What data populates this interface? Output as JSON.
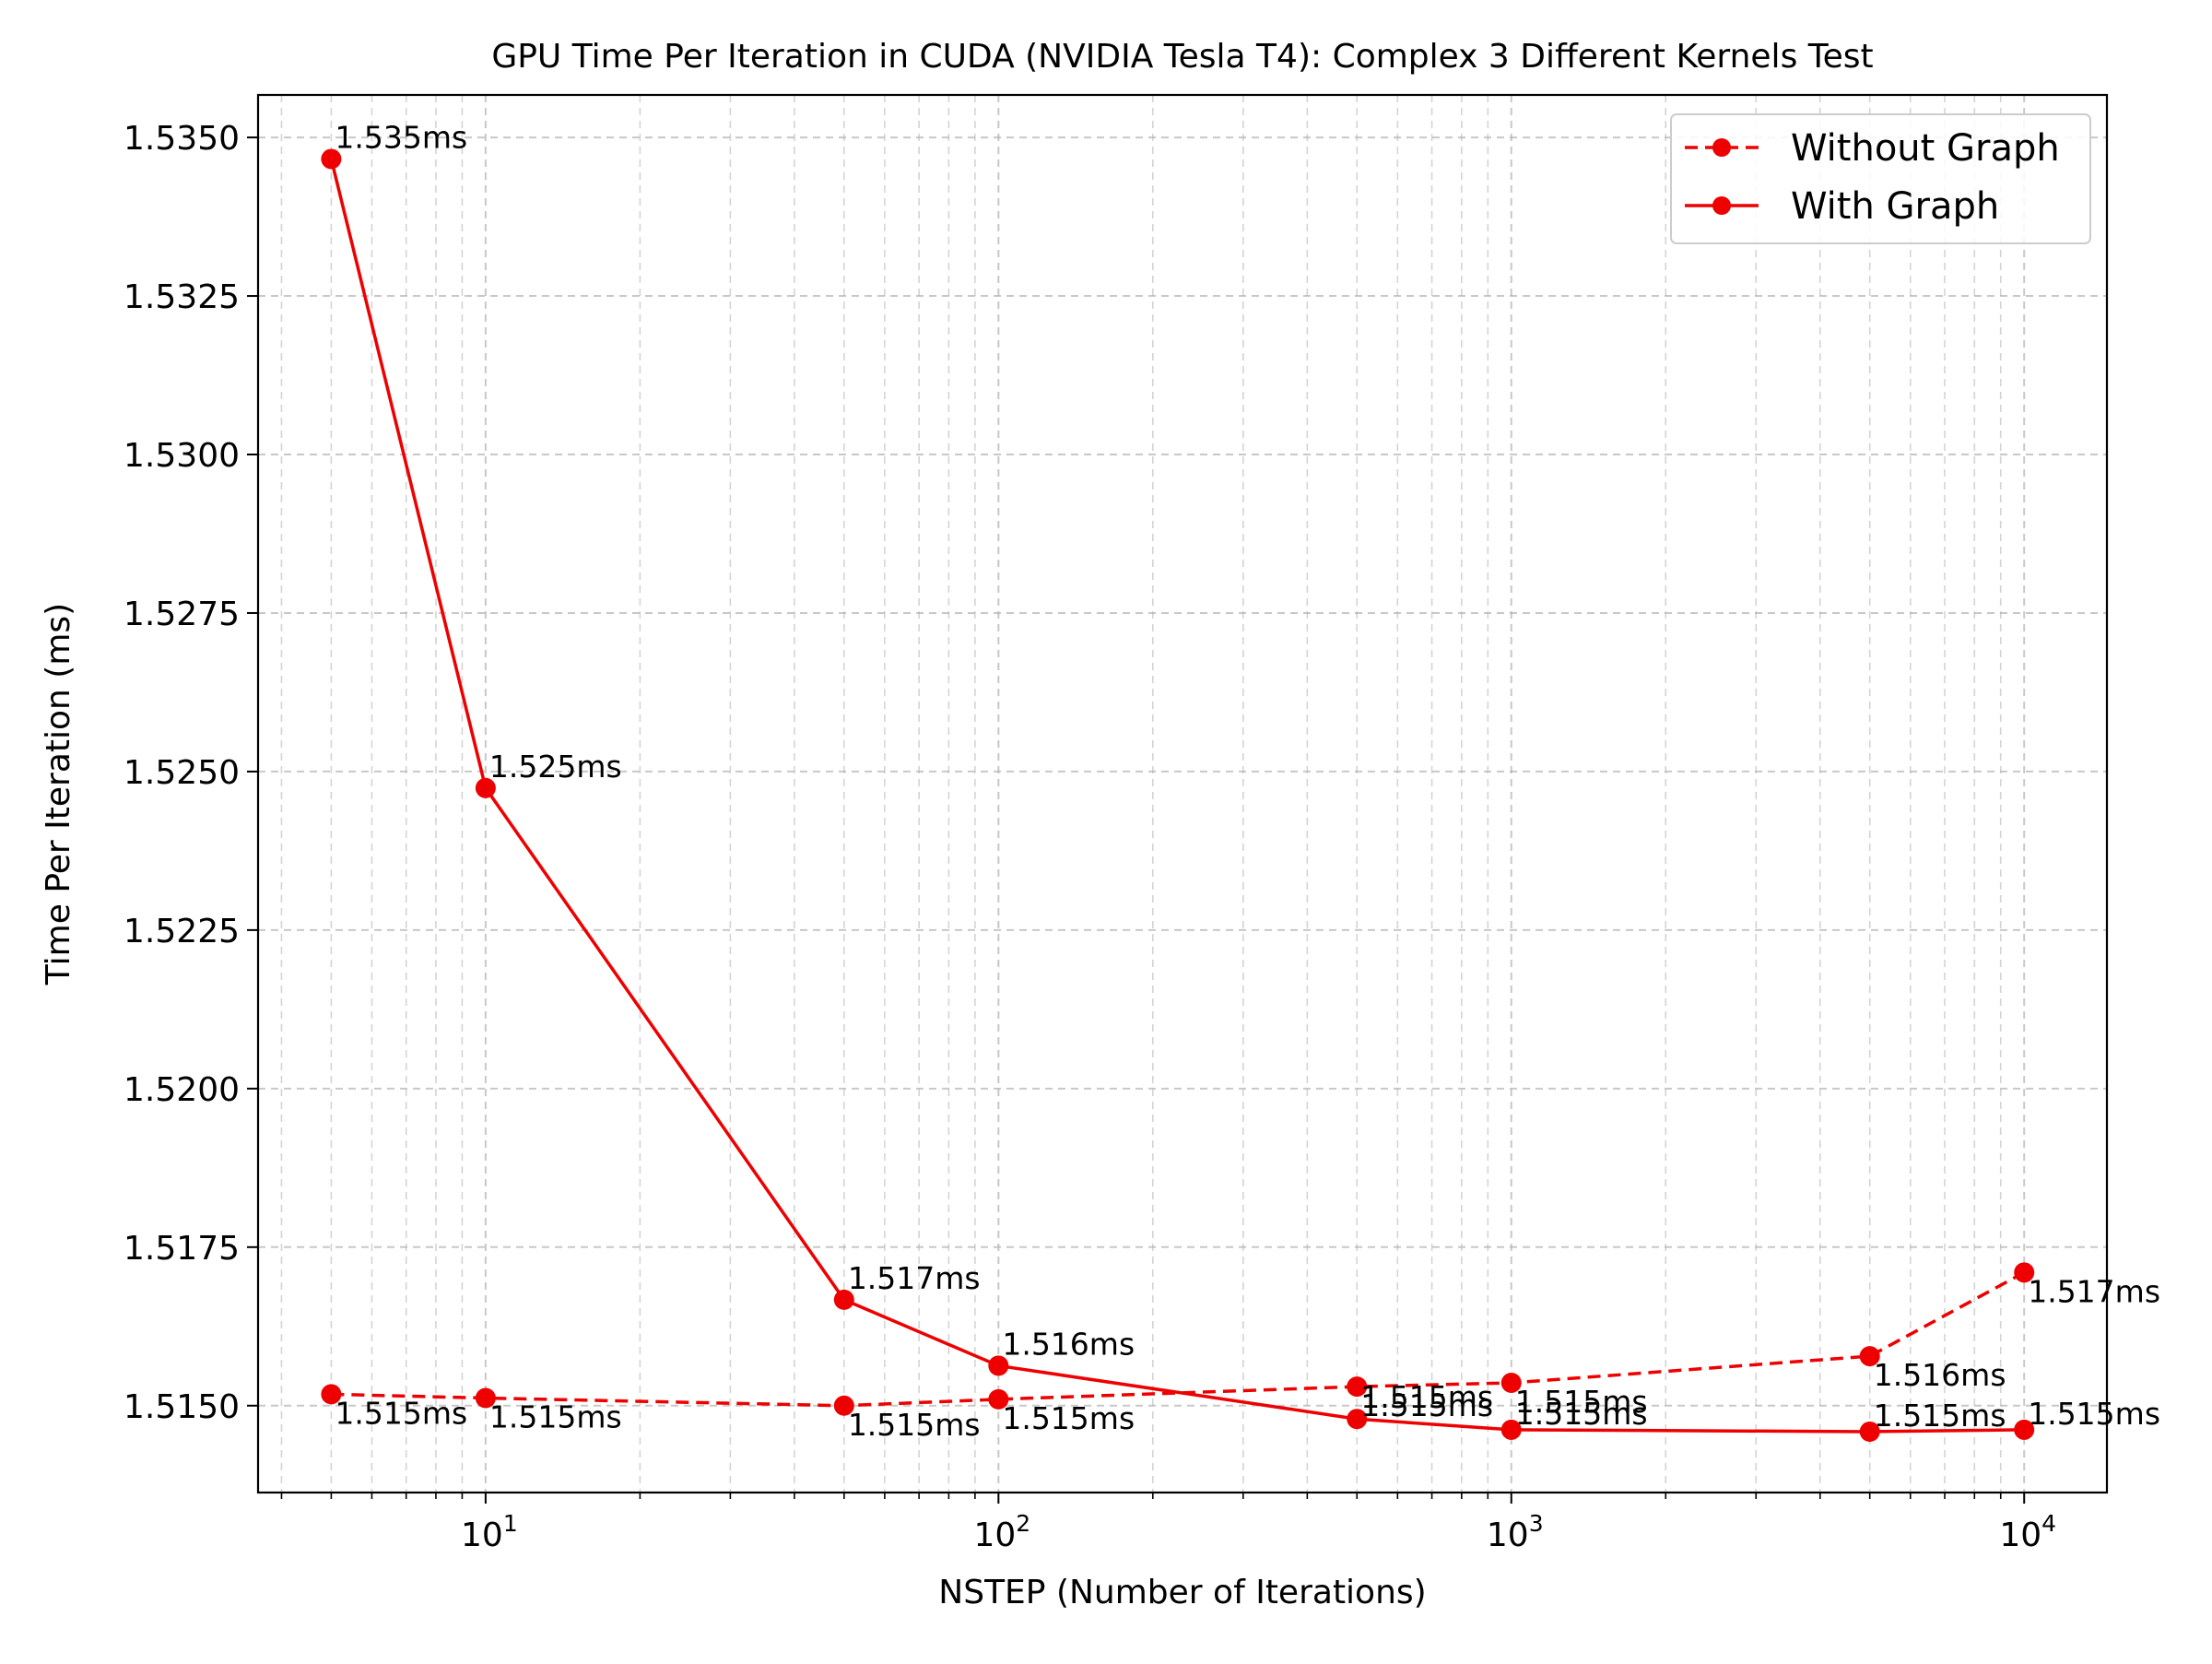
{
  "chart_data": {
    "type": "line",
    "title": "GPU Time Per Iteration in CUDA (NVIDIA Tesla T4): Complex 3 Different Kernels Test",
    "xlabel": "NSTEP (Number of Iterations)",
    "ylabel": "Time Per Iteration (ms)",
    "xscale": "log",
    "xlim": [
      3.6,
      14500
    ],
    "ylim": [
      1.51363,
      1.53567
    ],
    "grid": true,
    "legend_position": "top-right",
    "x": [
      5,
      10,
      50,
      100,
      500,
      1000,
      5000,
      10000
    ],
    "x_ticks": [
      {
        "base": "10",
        "exp": "1",
        "value": 10
      },
      {
        "base": "10",
        "exp": "2",
        "value": 100
      },
      {
        "base": "10",
        "exp": "3",
        "value": 1000
      },
      {
        "base": "10",
        "exp": "4",
        "value": 10000
      }
    ],
    "y_ticks": [
      "1.5150",
      "1.5175",
      "1.5200",
      "1.5225",
      "1.5250",
      "1.5275",
      "1.5300",
      "1.5325",
      "1.5350"
    ],
    "series": [
      {
        "name": "Without Graph",
        "style": "dashed",
        "color": "#ee0000",
        "values": [
          1.51518,
          1.51512,
          1.515,
          1.5151,
          1.5153,
          1.51536,
          1.51578,
          1.5171
        ],
        "labels": [
          "1.515ms",
          "1.515ms",
          "1.515ms",
          "1.515ms",
          "1.515ms",
          "1.515ms",
          "1.516ms",
          "1.517ms"
        ]
      },
      {
        "name": "With Graph",
        "style": "solid",
        "color": "#ee0000",
        "values": [
          1.53466,
          1.52474,
          1.51667,
          1.51563,
          1.51479,
          1.51462,
          1.51459,
          1.51462
        ],
        "labels": [
          "1.535ms",
          "1.525ms",
          "1.517ms",
          "1.516ms",
          "1.515ms",
          "1.515ms",
          "1.515ms",
          "1.515ms"
        ]
      }
    ]
  }
}
